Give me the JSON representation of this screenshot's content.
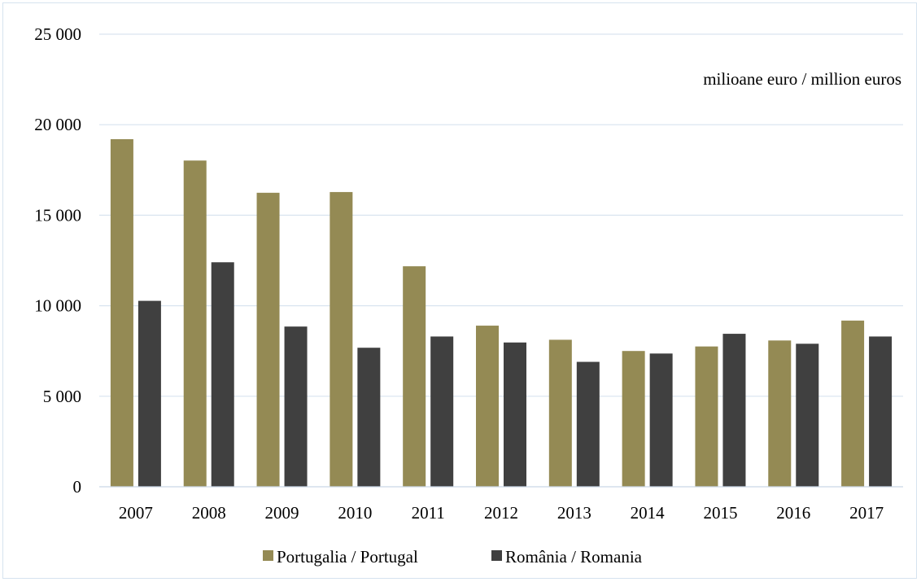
{
  "chart_data": {
    "type": "bar",
    "unit_label": "milioane euro / million euros",
    "categories": [
      "2007",
      "2008",
      "2009",
      "2010",
      "2011",
      "2012",
      "2013",
      "2014",
      "2015",
      "2016",
      "2017"
    ],
    "series": [
      {
        "name": "Portugalia / Portugal",
        "color": "#948A54",
        "values": [
          19200,
          18020,
          16240,
          16280,
          12180,
          8900,
          8120,
          7500,
          7750,
          8080,
          9180
        ]
      },
      {
        "name": "România / Romania",
        "color": "#404040",
        "values": [
          10270,
          12400,
          8850,
          7680,
          8300,
          7970,
          6900,
          7360,
          8450,
          7900,
          8300
        ]
      }
    ],
    "y_ticks": [
      "0",
      "5 000",
      "10 000",
      "15 000",
      "20 000",
      "25 000"
    ],
    "ylim": [
      0,
      25000
    ],
    "grid": true,
    "legend_position": "bottom"
  }
}
